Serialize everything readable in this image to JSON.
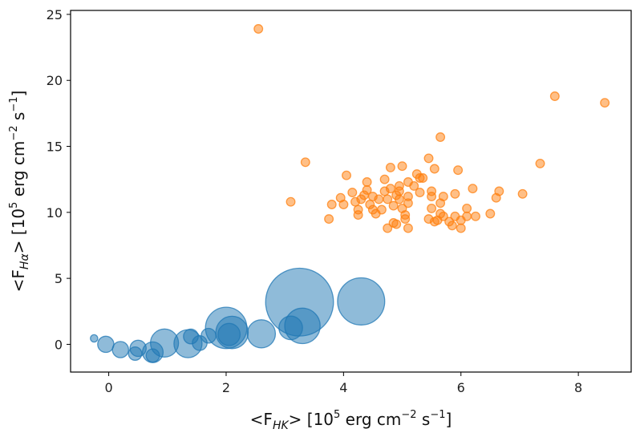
{
  "chart_data": {
    "type": "scatter",
    "title": "",
    "xlabel": {
      "prefix": "<F",
      "sub": "HK",
      "suffix": "> [10",
      "exp1": "5",
      "mid": " erg cm",
      "exp2": "−2",
      "mid2": " s",
      "exp3": "−1",
      "end": "]"
    },
    "ylabel": {
      "prefix": "<F",
      "sub": "Hα",
      "suffix": "> [10",
      "exp1": "5",
      "mid": " erg cm",
      "exp2": "−2",
      "mid2": " s",
      "exp3": "−1",
      "end": "]"
    },
    "xlim": [
      -0.65,
      8.9
    ],
    "ylim": [
      -2.1,
      25.3
    ],
    "xticks": [
      0,
      2,
      4,
      6,
      8
    ],
    "yticks": [
      0,
      5,
      10,
      15,
      20,
      25
    ],
    "series": [
      {
        "name": "blue",
        "color": "#1f77b4",
        "note": "marker sizes vary (relative size value per point)",
        "points": [
          {
            "x": -0.25,
            "y": 0.45,
            "s": 0.5
          },
          {
            "x": -0.05,
            "y": 0.0,
            "s": 1.1
          },
          {
            "x": 0.2,
            "y": -0.4,
            "s": 1.1
          },
          {
            "x": 0.45,
            "y": -0.7,
            "s": 0.9
          },
          {
            "x": 0.5,
            "y": -0.3,
            "s": 1.1
          },
          {
            "x": 0.75,
            "y": -0.6,
            "s": 1.4
          },
          {
            "x": 0.75,
            "y": -0.85,
            "s": 0.9
          },
          {
            "x": 0.95,
            "y": 0.1,
            "s": 1.9
          },
          {
            "x": 1.35,
            "y": 0.05,
            "s": 1.9
          },
          {
            "x": 1.4,
            "y": 0.6,
            "s": 1.0
          },
          {
            "x": 1.55,
            "y": 0.1,
            "s": 1.0
          },
          {
            "x": 1.7,
            "y": 0.65,
            "s": 1.0
          },
          {
            "x": 2.0,
            "y": 1.25,
            "s": 2.8
          },
          {
            "x": 2.05,
            "y": 0.75,
            "s": 1.5
          },
          {
            "x": 2.1,
            "y": 0.9,
            "s": 2.2
          },
          {
            "x": 2.6,
            "y": 0.8,
            "s": 1.9
          },
          {
            "x": 3.1,
            "y": 1.25,
            "s": 1.6
          },
          {
            "x": 3.25,
            "y": 3.2,
            "s": 4.6
          },
          {
            "x": 3.3,
            "y": 1.4,
            "s": 2.4
          },
          {
            "x": 4.3,
            "y": 3.25,
            "s": 3.2
          }
        ]
      },
      {
        "name": "orange",
        "color": "#ff7f0e",
        "points": [
          {
            "x": 2.55,
            "y": 23.9
          },
          {
            "x": 3.1,
            "y": 10.8
          },
          {
            "x": 3.35,
            "y": 13.8
          },
          {
            "x": 3.75,
            "y": 9.5
          },
          {
            "x": 3.8,
            "y": 10.6
          },
          {
            "x": 3.95,
            "y": 11.1
          },
          {
            "x": 4.0,
            "y": 10.6
          },
          {
            "x": 4.05,
            "y": 12.8
          },
          {
            "x": 4.15,
            "y": 11.5
          },
          {
            "x": 4.2,
            "y": 10.8
          },
          {
            "x": 4.25,
            "y": 10.2
          },
          {
            "x": 4.25,
            "y": 9.8
          },
          {
            "x": 4.3,
            "y": 11.0
          },
          {
            "x": 4.35,
            "y": 11.3
          },
          {
            "x": 4.4,
            "y": 12.3
          },
          {
            "x": 4.4,
            "y": 11.7
          },
          {
            "x": 4.45,
            "y": 10.6
          },
          {
            "x": 4.5,
            "y": 11.2
          },
          {
            "x": 4.5,
            "y": 10.2
          },
          {
            "x": 4.55,
            "y": 9.9
          },
          {
            "x": 4.6,
            "y": 11.0
          },
          {
            "x": 4.65,
            "y": 10.2
          },
          {
            "x": 4.7,
            "y": 12.5
          },
          {
            "x": 4.7,
            "y": 11.6
          },
          {
            "x": 4.75,
            "y": 11.0
          },
          {
            "x": 4.75,
            "y": 8.8
          },
          {
            "x": 4.8,
            "y": 13.4
          },
          {
            "x": 4.8,
            "y": 11.8
          },
          {
            "x": 4.85,
            "y": 10.5
          },
          {
            "x": 4.85,
            "y": 9.2
          },
          {
            "x": 4.9,
            "y": 11.3
          },
          {
            "x": 4.9,
            "y": 9.1
          },
          {
            "x": 4.95,
            "y": 12.0
          },
          {
            "x": 4.95,
            "y": 11.6
          },
          {
            "x": 4.95,
            "y": 11.0
          },
          {
            "x": 5.0,
            "y": 13.5
          },
          {
            "x": 5.0,
            "y": 10.3
          },
          {
            "x": 5.05,
            "y": 9.8
          },
          {
            "x": 5.05,
            "y": 9.5
          },
          {
            "x": 5.1,
            "y": 12.3
          },
          {
            "x": 5.1,
            "y": 11.2
          },
          {
            "x": 5.1,
            "y": 10.7
          },
          {
            "x": 5.1,
            "y": 8.8
          },
          {
            "x": 5.2,
            "y": 12.0
          },
          {
            "x": 5.25,
            "y": 12.9
          },
          {
            "x": 5.3,
            "y": 12.6
          },
          {
            "x": 5.3,
            "y": 11.5
          },
          {
            "x": 5.35,
            "y": 12.6
          },
          {
            "x": 5.45,
            "y": 14.1
          },
          {
            "x": 5.45,
            "y": 9.5
          },
          {
            "x": 5.5,
            "y": 11.6
          },
          {
            "x": 5.5,
            "y": 11.2
          },
          {
            "x": 5.5,
            "y": 10.3
          },
          {
            "x": 5.55,
            "y": 13.3
          },
          {
            "x": 5.55,
            "y": 9.3
          },
          {
            "x": 5.6,
            "y": 9.4
          },
          {
            "x": 5.65,
            "y": 15.7
          },
          {
            "x": 5.65,
            "y": 10.7
          },
          {
            "x": 5.65,
            "y": 9.9
          },
          {
            "x": 5.7,
            "y": 11.2
          },
          {
            "x": 5.7,
            "y": 9.7
          },
          {
            "x": 5.8,
            "y": 9.3
          },
          {
            "x": 5.85,
            "y": 9.0
          },
          {
            "x": 5.9,
            "y": 11.4
          },
          {
            "x": 5.9,
            "y": 9.7
          },
          {
            "x": 5.95,
            "y": 13.2
          },
          {
            "x": 6.0,
            "y": 9.4
          },
          {
            "x": 6.0,
            "y": 8.8
          },
          {
            "x": 6.1,
            "y": 10.3
          },
          {
            "x": 6.1,
            "y": 9.7
          },
          {
            "x": 6.2,
            "y": 11.8
          },
          {
            "x": 6.25,
            "y": 9.7
          },
          {
            "x": 6.5,
            "y": 9.9
          },
          {
            "x": 6.6,
            "y": 11.1
          },
          {
            "x": 6.65,
            "y": 11.6
          },
          {
            "x": 7.05,
            "y": 11.4
          },
          {
            "x": 7.35,
            "y": 13.7
          },
          {
            "x": 7.6,
            "y": 18.8
          },
          {
            "x": 8.45,
            "y": 18.3
          }
        ]
      }
    ]
  }
}
